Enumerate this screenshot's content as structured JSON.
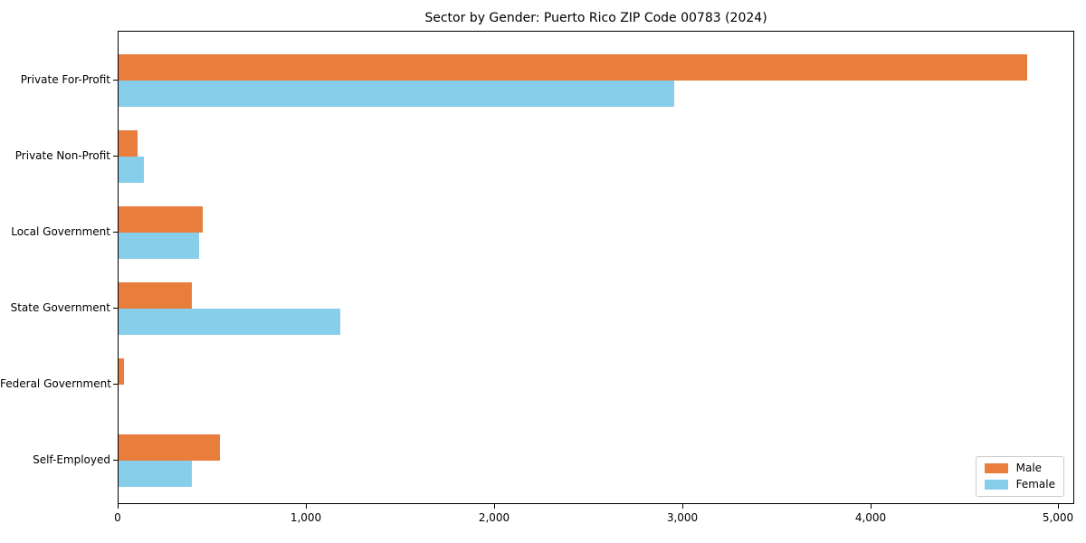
{
  "chart_data": {
    "type": "bar",
    "orientation": "horizontal",
    "title": "Sector by Gender: Puerto Rico ZIP Code 00783 (2024)",
    "xlabel": "",
    "ylabel": "",
    "categories": [
      "Private For-Profit",
      "Private Non-Profit",
      "Local Government",
      "State Government",
      "Federal Government",
      "Self-Employed"
    ],
    "series": [
      {
        "name": "Male",
        "color": "#E87D3C",
        "values": [
          4830,
          100,
          445,
          390,
          30,
          540
        ]
      },
      {
        "name": "Female",
        "color": "#87CEEB",
        "values": [
          2955,
          135,
          430,
          1180,
          0,
          390
        ]
      }
    ],
    "xlim": [
      0,
      5075
    ],
    "x_ticks": [
      {
        "value": 0,
        "label": "0"
      },
      {
        "value": 1000,
        "label": "1,000"
      },
      {
        "value": 2000,
        "label": "2,000"
      },
      {
        "value": 3000,
        "label": "3,000"
      },
      {
        "value": 4000,
        "label": "4,000"
      },
      {
        "value": 5000,
        "label": "5,000"
      }
    ],
    "grid": false,
    "legend": {
      "position": "lower right",
      "entries": [
        {
          "label": "Male",
          "color": "#E87D3C"
        },
        {
          "label": "Female",
          "color": "#87CEEB"
        }
      ]
    }
  },
  "colors": {
    "male": "#E87D3C",
    "female": "#87CEEB",
    "spine": "#000000",
    "legend_border": "#cccccc",
    "background": "#ffffff"
  }
}
